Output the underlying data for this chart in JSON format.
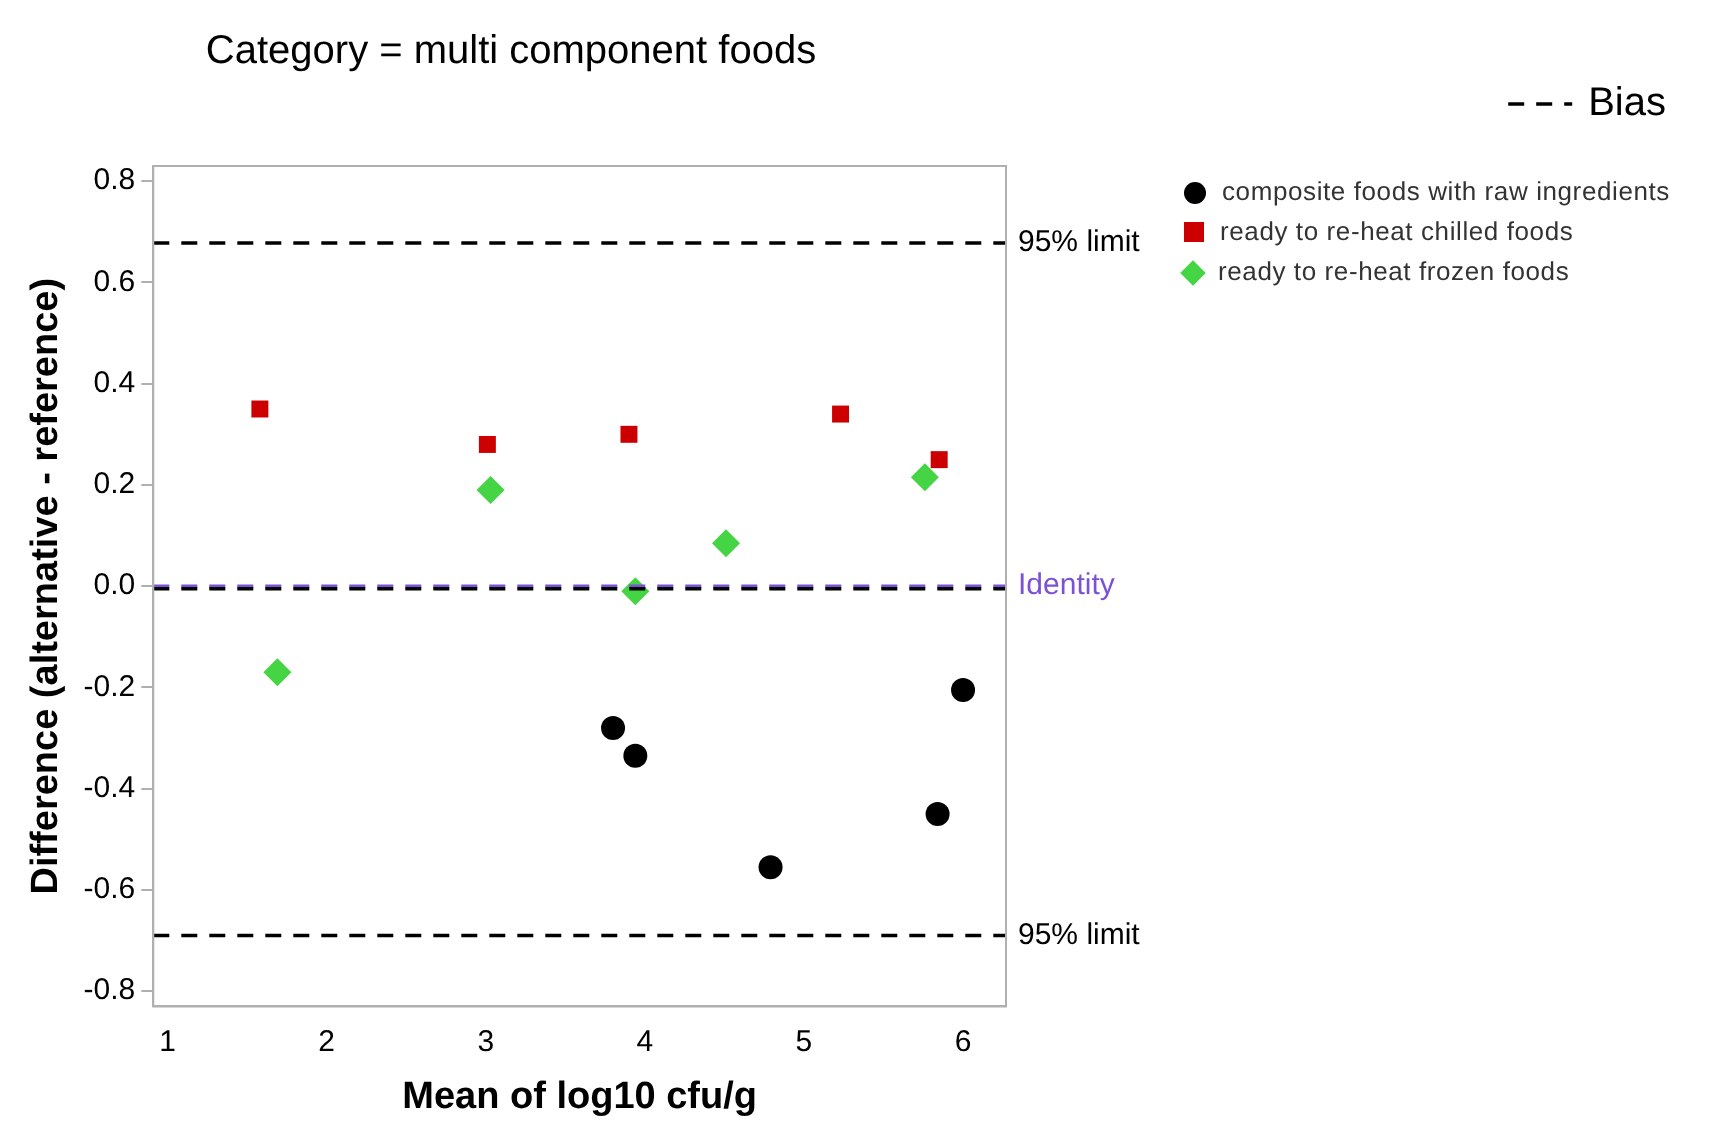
{
  "chart_data": {
    "type": "scatter",
    "title": "Category = multi component foods",
    "xlabel": "Mean of log10 cfu/g",
    "ylabel": "Difference (alternative - reference)",
    "xlim": [
      0.91,
      6.27
    ],
    "xticks": [
      1,
      2,
      3,
      4,
      5,
      6
    ],
    "ylim": [
      -0.83,
      0.83
    ],
    "yticks": [
      -0.8,
      -0.6,
      -0.4,
      -0.2,
      {
        "value": 0,
        "label": "0.0"
      },
      0.2,
      0.4,
      0.6,
      0.8
    ],
    "grid": false,
    "legend": "top right",
    "series": [
      {
        "name": "composite foods with raw ingredients",
        "color": "#000000",
        "marker": "circle",
        "x": [
          3.8,
          3.94,
          4.79,
          5.84,
          6.0
        ],
        "values": [
          -0.28,
          -0.335,
          -0.555,
          -0.45,
          -0.205
        ]
      },
      {
        "name": "ready to re-heat chilled foods",
        "color": "#cc0000",
        "marker": "square",
        "x": [
          1.58,
          3.01,
          3.9,
          5.23,
          5.85
        ],
        "values": [
          0.35,
          0.28,
          0.3,
          0.34,
          0.25
        ]
      },
      {
        "name": "ready to re-heat frozen foods",
        "color": "#44d444",
        "marker": "diamond",
        "x": [
          1.69,
          3.03,
          3.94,
          4.51,
          5.76
        ],
        "values": [
          -0.17,
          0.19,
          -0.01,
          0.085,
          0.215
        ]
      }
    ],
    "ref_lines": [
      {
        "axis": "y",
        "value": 0.678,
        "label": "95% limit",
        "color": "#000000",
        "line_style": "dashed"
      },
      {
        "axis": "y",
        "value": -0.69,
        "label": "95% limit",
        "color": "#000000",
        "line_style": "dashed"
      },
      {
        "axis": "y",
        "value": 0,
        "label": "Identity",
        "color": "#7b52d6",
        "line_style": "dashed"
      },
      {
        "axis": "y",
        "value": -0.005,
        "label": "Bias",
        "color": "#000000",
        "line_style": "dashed"
      }
    ]
  }
}
